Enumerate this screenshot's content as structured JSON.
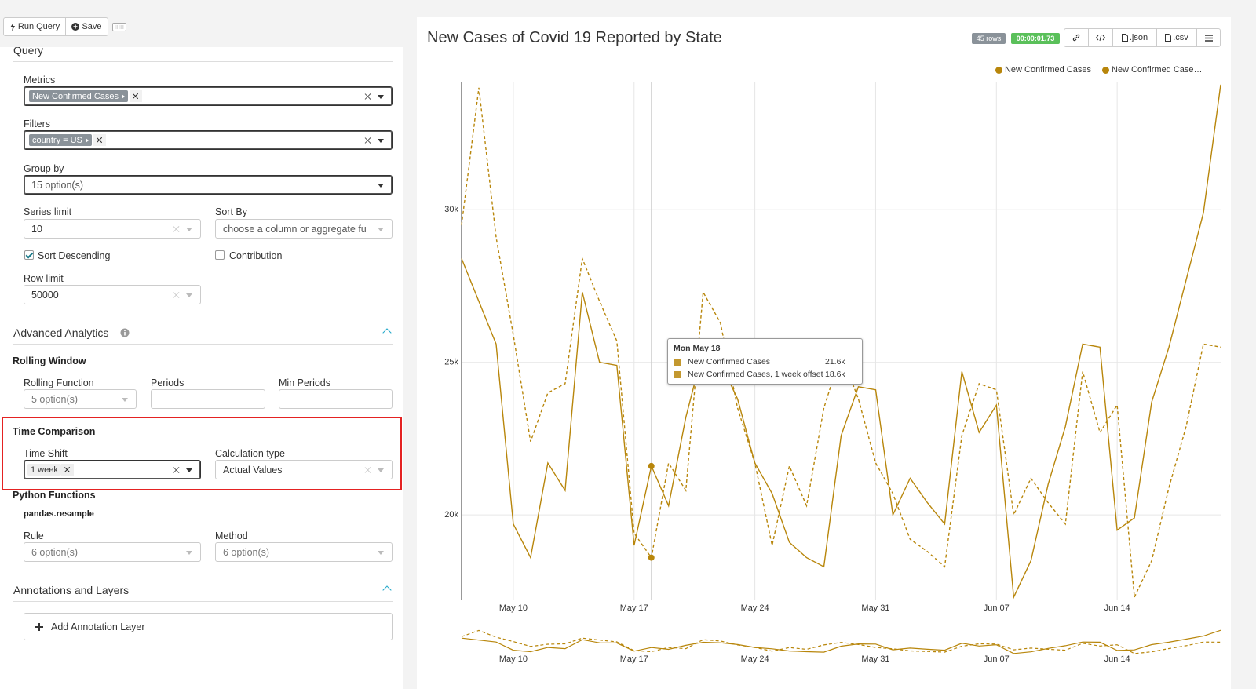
{
  "toolbar": {
    "run_query": "Run Query",
    "save": "Save"
  },
  "query": {
    "title": "Query",
    "metrics": {
      "label": "Metrics",
      "tags": [
        "New Confirmed Cases"
      ]
    },
    "filters": {
      "label": "Filters",
      "tags": [
        "country = US"
      ]
    },
    "group_by": {
      "label": "Group by",
      "placeholder": "15 option(s)"
    },
    "series_limit": {
      "label": "Series limit",
      "value": "10"
    },
    "sort_by": {
      "label": "Sort By",
      "placeholder": "choose a column or aggregate fu"
    },
    "sort_descending": {
      "label": "Sort Descending",
      "checked": true
    },
    "contribution": {
      "label": "Contribution",
      "checked": false
    },
    "row_limit": {
      "label": "Row limit",
      "value": "50000"
    }
  },
  "advanced_analytics": {
    "title": "Advanced Analytics",
    "rolling_window": {
      "title": "Rolling Window",
      "function": {
        "label": "Rolling Function",
        "placeholder": "5 option(s)"
      },
      "periods": {
        "label": "Periods"
      },
      "min_periods": {
        "label": "Min Periods"
      }
    },
    "time_comparison": {
      "title": "Time Comparison",
      "time_shift": {
        "label": "Time Shift",
        "tags": [
          "1 week"
        ]
      },
      "calculation_type": {
        "label": "Calculation type",
        "value": "Actual Values"
      }
    },
    "python_functions": {
      "title": "Python Functions",
      "subtitle": "pandas.resample",
      "rule": {
        "label": "Rule",
        "placeholder": "6 option(s)"
      },
      "method": {
        "label": "Method",
        "placeholder": "6 option(s)"
      }
    }
  },
  "annotations": {
    "title": "Annotations and Layers",
    "add": "Add Annotation Layer"
  },
  "chart_header": {
    "rows": "45 rows",
    "duration": "00:00:01.73",
    "json": ".json",
    "csv": ".csv"
  },
  "chart_data": {
    "type": "line",
    "title": "New Cases of Covid 19 Reported by State",
    "categories": [
      null,
      null,
      null,
      "May 10",
      null,
      null,
      null,
      null,
      null,
      null,
      "May 17",
      null,
      null,
      null,
      null,
      null,
      null,
      "May 24",
      null,
      null,
      null,
      null,
      null,
      null,
      "May 31",
      null,
      null,
      null,
      null,
      null,
      null,
      "Jun 07",
      null,
      null,
      null,
      null,
      null,
      null,
      "Jun 14",
      null,
      null,
      null,
      null,
      null,
      null
    ],
    "series": [
      {
        "name": "New Confirmed Cases",
        "color": "#b8860b",
        "line_style": "solid",
        "values": [
          28400,
          27000,
          25600,
          19700,
          18600,
          21700,
          20800,
          27300,
          25000,
          24900,
          19000,
          21600,
          20300,
          23200,
          25400,
          25000,
          23800,
          21700,
          20700,
          19100,
          18600,
          18300,
          22600,
          24200,
          24100,
          20000,
          21200,
          20400,
          19700,
          24700,
          22700,
          23600,
          17300,
          18500,
          21000,
          22900,
          25600,
          25500,
          19500,
          19900,
          23700,
          25500,
          27700,
          29900,
          34100
        ]
      },
      {
        "name": "New Confirmed Cases, 1 week offset",
        "color": "#b8860b",
        "line_style": "dashed",
        "values": [
          29500,
          34000,
          29100,
          25900,
          22400,
          24000,
          24300,
          28400,
          27000,
          25700,
          19400,
          18600,
          21700,
          20800,
          27300,
          26300,
          23500,
          21700,
          19000,
          21600,
          20300,
          23500,
          25300,
          23800,
          21700,
          20700,
          19200,
          18800,
          18300,
          22600,
          24300,
          24100,
          20000,
          21200,
          20400,
          19700,
          24700,
          22700,
          23600,
          17300,
          18500,
          20900,
          22900,
          25600,
          25500
        ]
      }
    ],
    "ylim": [
      17200,
      34200
    ],
    "yticks": [
      {
        "value": 20000,
        "label": "20k"
      },
      {
        "value": 25000,
        "label": "25k"
      },
      {
        "value": 30000,
        "label": "30k"
      }
    ],
    "grid": true,
    "legend": "top-right",
    "tooltip": {
      "title": "Mon May 18",
      "values": [
        "21.6k",
        "18.6k"
      ]
    }
  }
}
